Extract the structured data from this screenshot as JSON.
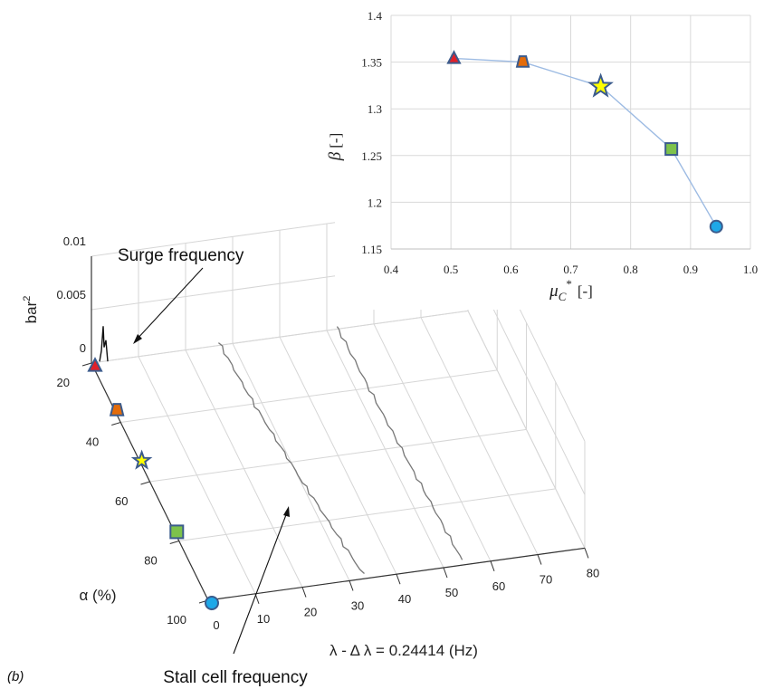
{
  "panel_label": "(b)",
  "annotations": {
    "surge": "Surge frequency",
    "stall": "Stall cell frequency"
  },
  "chart_data": [
    {
      "type": "line",
      "title": "",
      "xlabel_symbol": "μ",
      "xlabel_sub": "C",
      "xlabel_sup": "*",
      "xlabel_unit": "[-]",
      "ylabel_symbol": "β",
      "ylabel_unit": "[-]",
      "xlim": [
        0.4,
        1.0
      ],
      "ylim": [
        1.15,
        1.4
      ],
      "x_ticks": [
        "0.4",
        "0.5",
        "0.6",
        "0.7",
        "0.8",
        "0.9",
        "1.0"
      ],
      "y_ticks": [
        "1.15",
        "1.2",
        "1.25",
        "1.3",
        "1.35",
        "1.4"
      ],
      "grid": true,
      "line_color": "#9DBBE3",
      "points": [
        {
          "x": 0.505,
          "y": 1.354,
          "marker": "triangle",
          "color": "#E0202A"
        },
        {
          "x": 0.62,
          "y": 1.35,
          "marker": "trapezoid",
          "color": "#E46C0A"
        },
        {
          "x": 0.75,
          "y": 1.324,
          "marker": "star",
          "color": "#FFFF00"
        },
        {
          "x": 0.868,
          "y": 1.257,
          "marker": "square",
          "color": "#7DC24B"
        },
        {
          "x": 0.943,
          "y": 1.174,
          "marker": "circle",
          "color": "#1EA8E8"
        }
      ]
    },
    {
      "type": "waterfall-3d",
      "xlabel": "λ - Δ λ = 0.24414 (Hz)",
      "ylabel": "α (%)",
      "zlabel": "bar",
      "zlabel_sup": "2",
      "x_ticks": [
        "0",
        "10",
        "20",
        "30",
        "40",
        "50",
        "60",
        "70",
        "80"
      ],
      "y_ticks": [
        "20",
        "40",
        "60",
        "80",
        "100"
      ],
      "z_ticks": [
        "0",
        "0.005",
        "0.01"
      ],
      "xlim": [
        0,
        80
      ],
      "ylim": [
        20,
        100
      ],
      "zlim": [
        0,
        0.01
      ],
      "surge_peak": {
        "freq_hz": 2.5,
        "alpha_pct": 20,
        "power": 0.0033
      },
      "stall_ridges": [
        {
          "freq_at_alpha20": 27,
          "freq_at_alpha100": 33
        },
        {
          "freq_at_alpha20": 52,
          "freq_at_alpha100": 54
        }
      ],
      "operating_points": [
        {
          "alpha": 20,
          "marker": "triangle",
          "color": "#E0202A"
        },
        {
          "alpha": 35,
          "marker": "trapezoid",
          "color": "#E46C0A"
        },
        {
          "alpha": 52,
          "marker": "star",
          "color": "#FFFF00"
        },
        {
          "alpha": 76,
          "marker": "square",
          "color": "#7DC24B"
        },
        {
          "alpha": 100,
          "marker": "circle",
          "color": "#1EA8E8"
        }
      ],
      "marker_edge_color": "#3B5B8C"
    }
  ]
}
